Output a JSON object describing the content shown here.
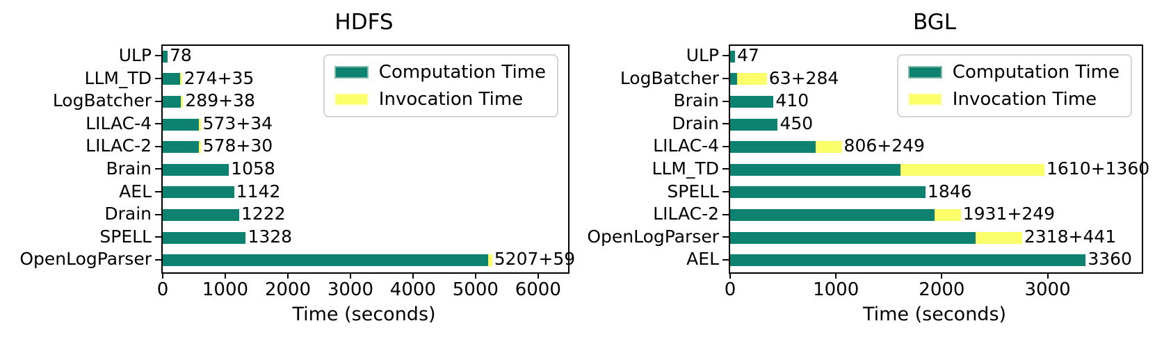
{
  "figure": {
    "background": "#ffffff",
    "colors": {
      "computation": "#0d8270",
      "invocation": "#fbff6a",
      "axis": "#000000",
      "legend_border": "#d4d4d4"
    },
    "legend": {
      "computation_label": "Computation Time",
      "invocation_label": "Invocation Time",
      "position": "upper right"
    }
  },
  "chart_data": [
    {
      "type": "bar",
      "orientation": "horizontal",
      "title": "HDFS",
      "xlabel": "Time (seconds)",
      "xlim": [
        0,
        6480
      ],
      "xticks": [
        0,
        1000,
        2000,
        3000,
        4000,
        5000,
        6000
      ],
      "grid": false,
      "legend_position": "upper right",
      "series_names": [
        "Computation Time",
        "Invocation Time"
      ],
      "bars": [
        {
          "category": "ULP",
          "computation": 78,
          "invocation": 0,
          "label": "78"
        },
        {
          "category": "LLM_TD",
          "computation": 274,
          "invocation": 35,
          "label": "274+35"
        },
        {
          "category": "LogBatcher",
          "computation": 289,
          "invocation": 38,
          "label": "289+38"
        },
        {
          "category": "LILAC-4",
          "computation": 573,
          "invocation": 34,
          "label": "573+34"
        },
        {
          "category": "LILAC-2",
          "computation": 578,
          "invocation": 30,
          "label": "578+30"
        },
        {
          "category": "Brain",
          "computation": 1058,
          "invocation": 0,
          "label": "1058"
        },
        {
          "category": "AEL",
          "computation": 1142,
          "invocation": 0,
          "label": "1142"
        },
        {
          "category": "Drain",
          "computation": 1222,
          "invocation": 0,
          "label": "1222"
        },
        {
          "category": "SPELL",
          "computation": 1328,
          "invocation": 0,
          "label": "1328"
        },
        {
          "category": "OpenLogParser",
          "computation": 5207,
          "invocation": 59,
          "label": "5207+59"
        }
      ]
    },
    {
      "type": "bar",
      "orientation": "horizontal",
      "title": "BGL",
      "xlabel": "Time (seconds)",
      "xlim": [
        0,
        3890
      ],
      "xticks": [
        0,
        1000,
        2000,
        3000
      ],
      "grid": false,
      "legend_position": "upper right",
      "series_names": [
        "Computation Time",
        "Invocation Time"
      ],
      "bars": [
        {
          "category": "ULP",
          "computation": 47,
          "invocation": 0,
          "label": "47"
        },
        {
          "category": "LogBatcher",
          "computation": 63,
          "invocation": 284,
          "label": "63+284"
        },
        {
          "category": "Brain",
          "computation": 410,
          "invocation": 0,
          "label": "410"
        },
        {
          "category": "Drain",
          "computation": 450,
          "invocation": 0,
          "label": "450"
        },
        {
          "category": "LILAC-4",
          "computation": 806,
          "invocation": 249,
          "label": "806+249"
        },
        {
          "category": "LLM_TD",
          "computation": 1610,
          "invocation": 1360,
          "label": "1610+1360"
        },
        {
          "category": "SPELL",
          "computation": 1846,
          "invocation": 0,
          "label": "1846"
        },
        {
          "category": "LILAC-2",
          "computation": 1931,
          "invocation": 249,
          "label": "1931+249"
        },
        {
          "category": "OpenLogParser",
          "computation": 2318,
          "invocation": 441,
          "label": "2318+441"
        },
        {
          "category": "AEL",
          "computation": 3360,
          "invocation": 0,
          "label": "3360"
        }
      ]
    }
  ]
}
